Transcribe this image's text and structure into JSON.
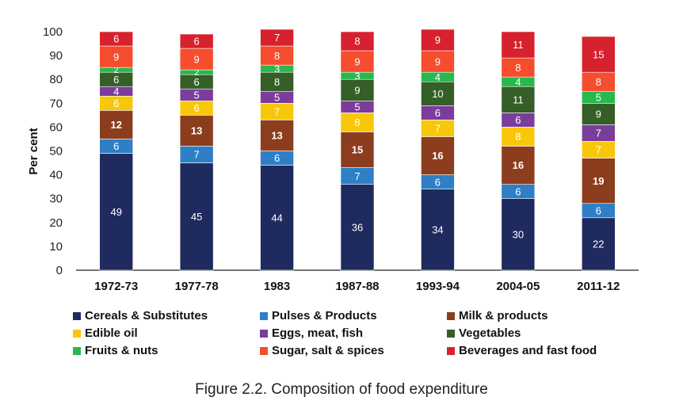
{
  "chart_data": {
    "type": "bar",
    "stacked": true,
    "title": "Figure 2.2. Composition of food expenditure",
    "xlabel": "",
    "ylabel": "Per cent",
    "ylim": [
      0,
      100
    ],
    "yticks": [
      "0",
      "10",
      "20",
      "30",
      "40",
      "50",
      "60",
      "70",
      "80",
      "90",
      "100"
    ],
    "categories": [
      "1972-73",
      "1977-78",
      "1983",
      "1987-88",
      "1993-94",
      "2004-05",
      "2011-12"
    ],
    "series": [
      {
        "name": "Cereals & Substitutes",
        "color": "#1f2a5e",
        "label_color": "#ffffff",
        "bold": false,
        "values": [
          49,
          45,
          44,
          36,
          34,
          30,
          22
        ]
      },
      {
        "name": "Pulses & Products",
        "color": "#2e7fc6",
        "label_color": "#ffffff",
        "bold": false,
        "values": [
          6,
          7,
          6,
          7,
          6,
          6,
          6
        ]
      },
      {
        "name": "Milk & products",
        "color": "#8b3d1e",
        "label_color": "#ffffff",
        "bold": true,
        "values": [
          12,
          13,
          13,
          15,
          16,
          16,
          19
        ]
      },
      {
        "name": "Edible oil",
        "color": "#f9c70a",
        "label_color": "#ffffff",
        "bold": false,
        "values": [
          6,
          6,
          7,
          8,
          7,
          8,
          7
        ]
      },
      {
        "name": "Eggs, meat, fish",
        "color": "#7a3d9c",
        "label_color": "#ffffff",
        "bold": false,
        "values": [
          4,
          5,
          5,
          5,
          6,
          6,
          7
        ]
      },
      {
        "name": "Vegetables",
        "color": "#345f26",
        "label_color": "#ffffff",
        "bold": false,
        "values": [
          6,
          6,
          8,
          9,
          10,
          11,
          9
        ]
      },
      {
        "name": "Fruits & nuts",
        "color": "#27b84e",
        "label_color": "#ffffff",
        "bold": false,
        "values": [
          2,
          2,
          3,
          3,
          4,
          4,
          5
        ]
      },
      {
        "name": "Sugar, salt & spices",
        "color": "#f54d2d",
        "label_color": "#ffffff",
        "bold": false,
        "values": [
          9,
          9,
          8,
          9,
          9,
          8,
          8
        ]
      },
      {
        "name": "Beverages and fast food",
        "color": "#d7212e",
        "label_color": "#ffffff",
        "bold": false,
        "values": [
          6,
          6,
          7,
          8,
          9,
          11,
          15
        ]
      }
    ],
    "legend_position": "bottom"
  }
}
